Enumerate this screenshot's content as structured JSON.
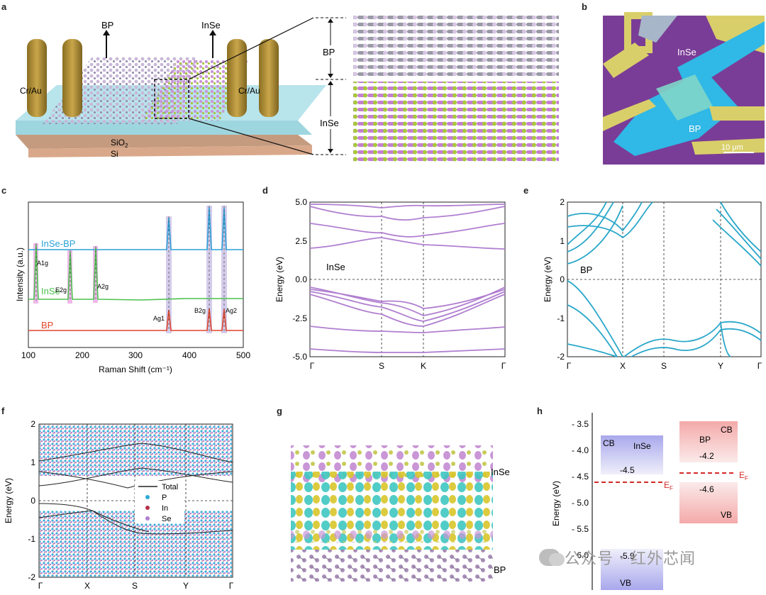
{
  "panels": {
    "a": {
      "label": "a",
      "bp": "BP",
      "inse": "InSe",
      "electrode_left": "Cr/Au",
      "electrode_right": "Cr/Au",
      "sio2": "SiO",
      "sio2_sub": "2",
      "si": "Si",
      "layer_bp": "BP",
      "layer_inse": "InSe"
    },
    "b": {
      "label": "b",
      "inse": "InSe",
      "bp": "BP",
      "scale": "10 μm"
    },
    "c": {
      "label": "c",
      "xlabel": "Raman Shift (cm⁻¹)",
      "ylabel": "Intensity (a.u.)",
      "xticks": [
        "100",
        "200",
        "300",
        "400",
        "500"
      ],
      "series": [
        "InSe-BP",
        "InSe",
        "BP"
      ],
      "peaks": [
        "A1g",
        "E2g",
        "A2g",
        "Ag1",
        "B2g",
        "Ag2"
      ]
    },
    "d": {
      "label": "d",
      "ylabel": "Energy (eV)",
      "yticks": [
        "5.0",
        "2.5",
        "0.0",
        "-2.5",
        "-5.0"
      ],
      "xticks": [
        "Γ",
        "S",
        "K",
        "Γ"
      ],
      "material": "InSe"
    },
    "e": {
      "label": "e",
      "ylabel": "Energy (eV)",
      "yticks": [
        "2",
        "1",
        "0",
        "-1",
        "-2"
      ],
      "xticks": [
        "Γ",
        "X",
        "S",
        "Y",
        "Γ"
      ],
      "material": "BP"
    },
    "f": {
      "label": "f",
      "ylabel": "Energy (eV)",
      "yticks": [
        "2",
        "1",
        "0",
        "-1",
        "-2"
      ],
      "xticks": [
        "Γ",
        "X",
        "S",
        "Y",
        "Γ"
      ],
      "legend": [
        "Total",
        "P",
        "In",
        "Se"
      ]
    },
    "g": {
      "label": "g",
      "inse": "InSe",
      "bp": "BP"
    },
    "h": {
      "label": "h",
      "ylabel": "Energy (eV)",
      "yticks": [
        "- 3.5",
        "- 4.0",
        "- 4.5",
        "- 5.0",
        "- 5.5",
        "- 6.0"
      ],
      "inse_cb": "CB",
      "inse_name": "InSe",
      "inse_cb_val": "-4.5",
      "inse_vb_val": "-5.9",
      "inse_vb": "VB",
      "bp_name": "BP",
      "bp_cb": "CB",
      "bp_cb_val": "-4.2",
      "bp_vb_val": "-4.6",
      "bp_vb": "VB",
      "ef": "E",
      "ef_sub": "F"
    }
  },
  "watermark": "公众号 · 红外芯闻",
  "colors": {
    "inse_band": "#b07fd0",
    "bp_band": "#29a7c9",
    "raman_inse_bp": "#2aa0d8",
    "raman_inse": "#4cc24c",
    "raman_bp": "#e0452b",
    "ef": "#d42a2a"
  }
}
